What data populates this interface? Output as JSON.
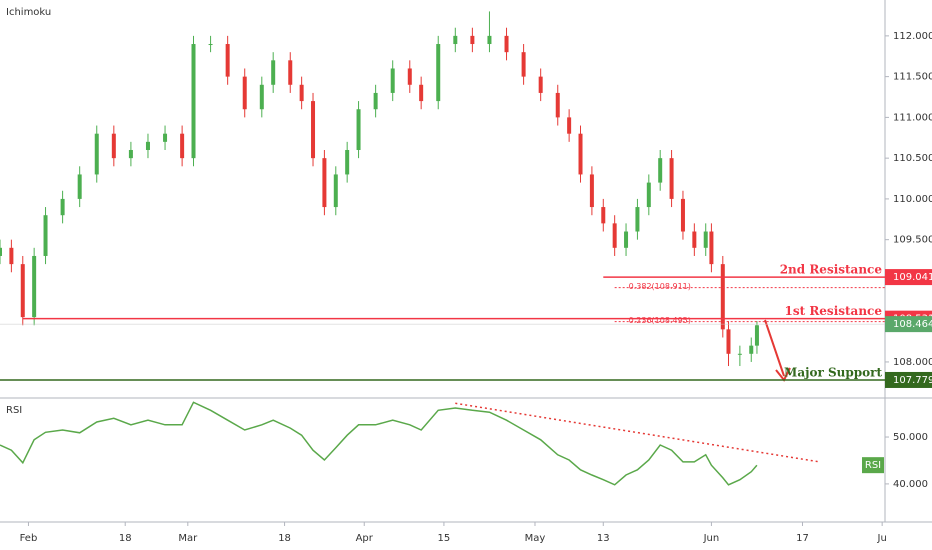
{
  "chart_data": {
    "type": "candlestick",
    "title": "Ichimoku",
    "x": [
      27,
      29,
      31,
      33,
      35,
      38,
      41,
      44,
      47,
      50,
      53,
      56,
      59,
      61,
      64,
      67,
      70,
      73,
      75,
      78,
      80,
      82,
      84,
      86,
      88,
      90,
      93,
      96,
      99,
      101,
      104,
      107,
      110,
      113,
      116,
      119,
      122,
      125,
      127,
      129,
      131,
      133,
      135,
      137,
      139,
      141,
      143,
      145,
      147,
      149,
      151,
      152,
      154,
      155,
      157,
      159,
      160
    ],
    "open": [
      109.3,
      109.4,
      109.2,
      108.55,
      109.3,
      109.8,
      110.0,
      110.3,
      110.8,
      110.5,
      110.6,
      110.7,
      110.8,
      110.5,
      111.9,
      111.9,
      111.5,
      111.1,
      111.4,
      111.7,
      111.4,
      111.2,
      110.5,
      109.9,
      110.3,
      110.6,
      111.1,
      111.3,
      111.6,
      111.4,
      111.2,
      111.9,
      112.0,
      111.9,
      112.0,
      111.8,
      111.5,
      111.3,
      111.0,
      110.8,
      110.3,
      109.9,
      109.7,
      109.4,
      109.6,
      109.9,
      110.2,
      110.5,
      110.0,
      109.6,
      109.4,
      109.6,
      109.2,
      108.4,
      108.1,
      108.1,
      108.2
    ],
    "high": [
      109.5,
      109.5,
      109.3,
      109.4,
      109.9,
      110.1,
      110.4,
      110.9,
      110.9,
      110.7,
      110.8,
      110.9,
      110.9,
      112.0,
      112.0,
      112.0,
      111.6,
      111.5,
      111.8,
      111.8,
      111.5,
      111.3,
      110.6,
      110.4,
      110.7,
      111.2,
      111.4,
      111.7,
      111.7,
      111.5,
      112.0,
      112.1,
      112.1,
      112.3,
      112.1,
      111.9,
      111.6,
      111.4,
      111.1,
      110.9,
      110.4,
      110.0,
      109.8,
      109.7,
      110.0,
      110.3,
      110.6,
      110.6,
      110.1,
      109.7,
      109.7,
      109.7,
      109.3,
      108.5,
      108.2,
      108.3,
      108.5
    ],
    "low": [
      109.2,
      109.1,
      108.45,
      108.45,
      109.2,
      109.7,
      109.9,
      110.2,
      110.4,
      110.4,
      110.5,
      110.6,
      110.4,
      110.4,
      111.8,
      111.4,
      111.0,
      111.0,
      111.3,
      111.3,
      111.1,
      110.4,
      109.8,
      109.8,
      110.2,
      110.5,
      111.0,
      111.2,
      111.3,
      111.1,
      111.1,
      111.8,
      111.8,
      111.8,
      111.7,
      111.4,
      111.2,
      110.9,
      110.7,
      110.2,
      109.8,
      109.6,
      109.3,
      109.3,
      109.5,
      109.8,
      110.1,
      109.9,
      109.5,
      109.3,
      109.3,
      109.1,
      108.3,
      107.95,
      107.95,
      108.0,
      108.1
    ],
    "close": [
      109.4,
      109.2,
      108.55,
      109.3,
      109.8,
      110.0,
      110.3,
      110.8,
      110.5,
      110.6,
      110.7,
      110.8,
      110.5,
      111.9,
      111.9,
      111.5,
      111.1,
      111.4,
      111.7,
      111.4,
      111.2,
      110.5,
      109.9,
      110.3,
      110.6,
      111.1,
      111.3,
      111.6,
      111.4,
      111.2,
      111.9,
      112.0,
      111.9,
      112.0,
      111.8,
      111.5,
      111.3,
      111.0,
      110.8,
      110.3,
      109.9,
      109.7,
      109.4,
      109.6,
      109.9,
      110.2,
      110.5,
      110.0,
      109.6,
      109.4,
      109.6,
      109.2,
      108.4,
      108.1,
      108.1,
      108.2,
      108.45
    ],
    "up_color": "#4caf50",
    "down_color": "#e53935",
    "xlim": [
      27,
      182.5
    ],
    "xticks": [
      {
        "value": 32,
        "label": "Feb"
      },
      {
        "value": 49,
        "label": "18"
      },
      {
        "value": 60,
        "label": "Mar"
      },
      {
        "value": 77,
        "label": "18"
      },
      {
        "value": 91,
        "label": "Apr"
      },
      {
        "value": 105,
        "label": "15"
      },
      {
        "value": 121,
        "label": "May"
      },
      {
        "value": 133,
        "label": "13"
      },
      {
        "value": 152,
        "label": "Jun"
      },
      {
        "value": 168,
        "label": "17"
      },
      {
        "value": 182,
        "label": "Ju"
      }
    ],
    "ylim": [
      107.57,
      112.44
    ],
    "yticks": [
      {
        "value": 108,
        "label": "108.000"
      },
      {
        "value": 108.5,
        "label": "108.500"
      },
      {
        "value": 109,
        "label": "109.000"
      },
      {
        "value": 109.5,
        "label": "109.500"
      },
      {
        "value": 110,
        "label": "110.000"
      },
      {
        "value": 110.5,
        "label": "110.500"
      },
      {
        "value": 111,
        "label": "111.000"
      },
      {
        "value": 111.5,
        "label": "111.500"
      },
      {
        "value": 112,
        "label": "112.000"
      }
    ],
    "levels": [
      {
        "name": "2nd Resistance",
        "value": 109.041,
        "color": "#f23645",
        "from": 133
      },
      {
        "name": "1st Resistance",
        "value": 108.531,
        "color": "#f23645",
        "from": 31
      },
      {
        "name": "Major Support",
        "value": 107.779,
        "color": "#33691e",
        "from": 27
      }
    ],
    "fib": [
      {
        "label": "0.382(108.911)",
        "value": 108.911,
        "from": 135
      },
      {
        "label": "0.236(108.495)",
        "value": 108.495,
        "from": 135
      }
    ],
    "fib_color": "#f23645",
    "last_price": 108.464,
    "last_color": "#5aa86a",
    "rsi": {
      "title": "RSI",
      "name": "RSI",
      "color": "#5aa84a",
      "values": [
        48.3,
        47.2,
        44.5,
        49.4,
        51,
        51.5,
        50.9,
        53.2,
        54,
        52.6,
        53.6,
        52.6,
        52.6,
        57.4,
        55.7,
        53.6,
        51.5,
        52.6,
        53.6,
        51.9,
        50.4,
        47.2,
        45.1,
        47.7,
        50.4,
        52.6,
        52.6,
        53.6,
        52.6,
        51.5,
        55.7,
        56.2,
        55.7,
        55.3,
        53.6,
        51.5,
        49.4,
        46.2,
        45.1,
        43,
        41.9,
        40.9,
        39.8,
        41.9,
        43,
        45.1,
        48.3,
        47.2,
        44.7,
        44.7,
        46.2,
        44,
        41.3,
        39.8,
        40.9,
        42.6,
        44
      ],
      "ylim": [
        32.3,
        57.9
      ],
      "yticks": [
        {
          "value": 40,
          "label": "40.000"
        },
        {
          "value": 50,
          "label": "50.000"
        }
      ],
      "trendline": {
        "x": [
          107,
          171
        ],
        "values": [
          57.2,
          44.7
        ],
        "color": "#e53935"
      }
    }
  }
}
